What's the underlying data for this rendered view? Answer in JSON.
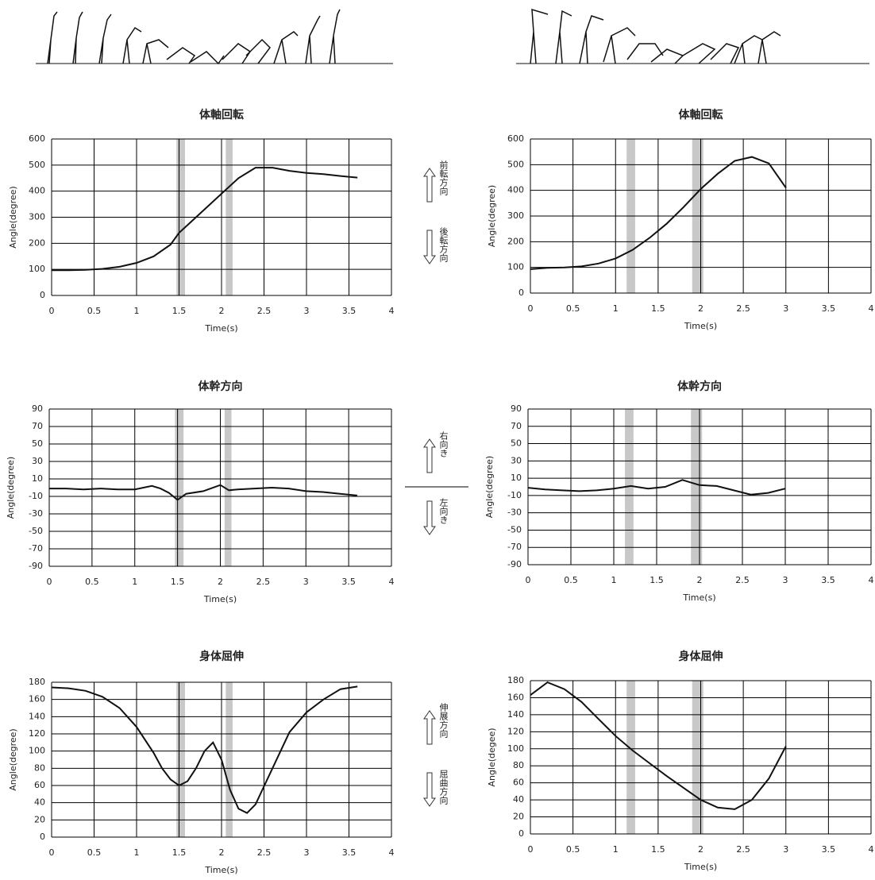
{
  "chart_data": [
    {
      "type": "line",
      "title": "体軸回転",
      "xlabel": "Time(s)",
      "ylabel": "Angle(degree)",
      "color": "#111111",
      "grid": true,
      "xlim": [
        0,
        4
      ],
      "ylim": [
        0,
        600
      ],
      "xticks": [
        0,
        0.5,
        1,
        1.5,
        2,
        2.5,
        3,
        3.5,
        4
      ],
      "yticks": [
        0,
        100,
        200,
        300,
        400,
        500,
        600
      ],
      "bands": [
        [
          1.47,
          1.57
        ],
        [
          2.05,
          2.13
        ]
      ],
      "band_color": "#c8c8c8",
      "x": [
        0,
        0.2,
        0.4,
        0.6,
        0.8,
        1.0,
        1.2,
        1.4,
        1.5,
        1.6,
        1.8,
        2.0,
        2.2,
        2.4,
        2.6,
        2.8,
        3.0,
        3.2,
        3.4,
        3.6
      ],
      "values": [
        97,
        97,
        98,
        102,
        110,
        125,
        150,
        195,
        240,
        270,
        330,
        390,
        450,
        490,
        490,
        478,
        470,
        465,
        458,
        452
      ]
    },
    {
      "type": "line",
      "title": "体軸回転",
      "xlabel": "Time(s)",
      "ylabel": "Angle(degree)",
      "color": "#111111",
      "grid": true,
      "xlim": [
        0,
        4
      ],
      "ylim": [
        0,
        600
      ],
      "xticks": [
        0,
        0.5,
        1,
        1.5,
        2,
        2.5,
        3,
        3.5,
        4
      ],
      "yticks": [
        0,
        100,
        200,
        300,
        400,
        500,
        600
      ],
      "bands": [
        [
          1.13,
          1.23
        ],
        [
          1.9,
          2.03
        ]
      ],
      "band_color": "#c8c8c8",
      "x": [
        0,
        0.2,
        0.4,
        0.6,
        0.8,
        1.0,
        1.2,
        1.4,
        1.6,
        1.8,
        2.0,
        2.2,
        2.4,
        2.6,
        2.8,
        3.0
      ],
      "values": [
        93,
        98,
        100,
        104,
        115,
        135,
        168,
        215,
        270,
        335,
        405,
        465,
        515,
        530,
        505,
        410
      ]
    },
    {
      "type": "line",
      "title": "体幹方向",
      "xlabel": "Time(s)",
      "ylabel": "Angle(degree)",
      "color": "#111111",
      "grid": true,
      "xlim": [
        0,
        4
      ],
      "ylim": [
        -90,
        90
      ],
      "xticks": [
        0,
        0.5,
        1,
        1.5,
        2,
        2.5,
        3,
        3.5,
        4
      ],
      "yticks": [
        -90,
        -70,
        -50,
        -30,
        -10,
        10,
        30,
        50,
        70,
        90
      ],
      "bands": [
        [
          1.47,
          1.57
        ],
        [
          2.05,
          2.13
        ]
      ],
      "band_color": "#c8c8c8",
      "x": [
        0,
        0.2,
        0.4,
        0.6,
        0.8,
        1.0,
        1.2,
        1.3,
        1.4,
        1.5,
        1.6,
        1.8,
        2.0,
        2.1,
        2.2,
        2.4,
        2.6,
        2.8,
        3.0,
        3.2,
        3.4,
        3.6
      ],
      "values": [
        -1,
        -1,
        -2,
        -1,
        -2,
        -2,
        2,
        -1,
        -6,
        -14,
        -7,
        -4,
        3,
        -3,
        -2,
        -1,
        0,
        -1,
        -4,
        -5,
        -7,
        -9
      ]
    },
    {
      "type": "line",
      "title": "体幹方向",
      "xlabel": "Time(s)",
      "ylabel": "Angle(degree)",
      "color": "#111111",
      "grid": true,
      "xlim": [
        0,
        4
      ],
      "ylim": [
        -90,
        90
      ],
      "xticks": [
        0,
        0.5,
        1,
        1.5,
        2,
        2.5,
        3,
        3.5,
        4
      ],
      "yticks": [
        -90,
        -70,
        -50,
        -30,
        -10,
        10,
        30,
        50,
        70,
        90
      ],
      "bands": [
        [
          1.13,
          1.23
        ],
        [
          1.9,
          2.03
        ]
      ],
      "band_color": "#c8c8c8",
      "x": [
        0,
        0.2,
        0.4,
        0.6,
        0.8,
        1.0,
        1.2,
        1.4,
        1.6,
        1.8,
        2.0,
        2.2,
        2.4,
        2.6,
        2.8,
        3.0
      ],
      "values": [
        -1,
        -3,
        -4,
        -5,
        -4,
        -2,
        1,
        -2,
        0,
        8,
        2,
        1,
        -4,
        -9,
        -7,
        -2
      ]
    },
    {
      "type": "line",
      "title": "身体屈伸",
      "xlabel": "Time(s)",
      "ylabel": "Angle(degree)",
      "color": "#111111",
      "grid": true,
      "xlim": [
        0,
        4
      ],
      "ylim": [
        0,
        180
      ],
      "xticks": [
        0,
        0.5,
        1,
        1.5,
        2,
        2.5,
        3,
        3.5,
        4
      ],
      "yticks": [
        0,
        20,
        40,
        60,
        80,
        100,
        120,
        140,
        160,
        180
      ],
      "bands": [
        [
          1.47,
          1.57
        ],
        [
          2.05,
          2.13
        ]
      ],
      "band_color": "#c8c8c8",
      "x": [
        0,
        0.2,
        0.4,
        0.6,
        0.8,
        1.0,
        1.2,
        1.3,
        1.4,
        1.5,
        1.6,
        1.7,
        1.8,
        1.9,
        2.0,
        2.1,
        2.2,
        2.3,
        2.4,
        2.6,
        2.8,
        3.0,
        3.2,
        3.4,
        3.6
      ],
      "values": [
        174,
        173,
        170,
        163,
        150,
        128,
        98,
        80,
        67,
        60,
        65,
        80,
        100,
        110,
        90,
        55,
        33,
        28,
        38,
        80,
        122,
        145,
        160,
        172,
        175
      ]
    },
    {
      "type": "line",
      "title": "身体屈伸",
      "xlabel": "Time(s)",
      "ylabel": "Angle(degee)",
      "color": "#111111",
      "grid": true,
      "xlim": [
        0,
        4
      ],
      "ylim": [
        0,
        180
      ],
      "xticks": [
        0,
        0.5,
        1,
        1.5,
        2,
        2.5,
        3,
        3.5,
        4
      ],
      "yticks": [
        0,
        20,
        40,
        60,
        80,
        100,
        120,
        140,
        160,
        180
      ],
      "bands": [
        [
          1.13,
          1.23
        ],
        [
          1.9,
          2.03
        ]
      ],
      "band_color": "#c8c8c8",
      "x": [
        0,
        0.2,
        0.4,
        0.6,
        0.8,
        1.0,
        1.2,
        1.4,
        1.6,
        1.8,
        2.0,
        2.2,
        2.4,
        2.6,
        2.8,
        3.0
      ],
      "values": [
        163,
        178,
        170,
        155,
        135,
        115,
        98,
        83,
        68,
        54,
        40,
        31,
        29,
        40,
        65,
        103
      ]
    }
  ],
  "annotations": [
    {
      "up": "前転方向",
      "down": "後転方向"
    },
    {
      "up": "右向き",
      "down": "左向き"
    },
    {
      "up": "伸展方向",
      "down": "屈曲方向"
    }
  ]
}
